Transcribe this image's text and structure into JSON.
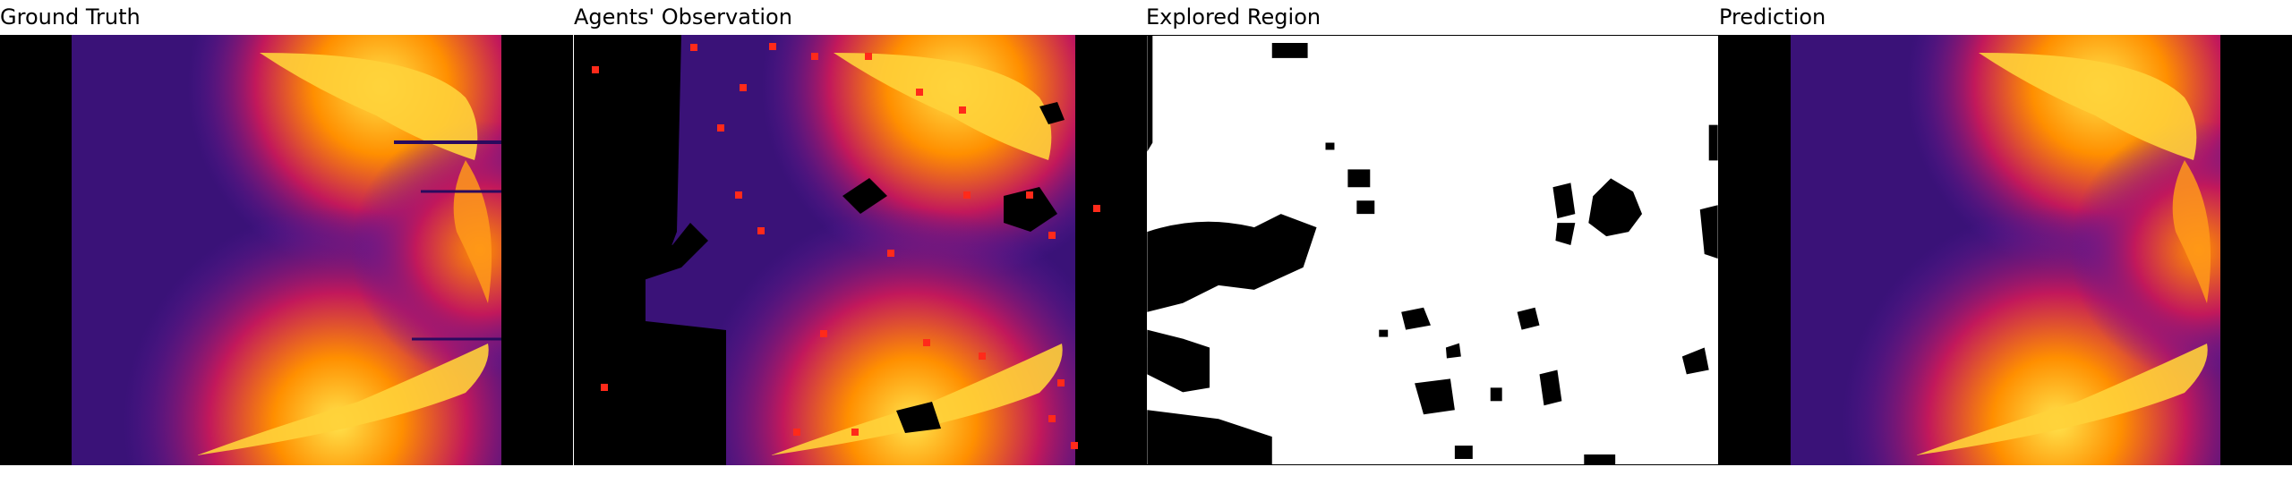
{
  "panels": [
    {
      "title": "Ground Truth"
    },
    {
      "title": "Agents' Observation"
    },
    {
      "title": "Explored Region"
    },
    {
      "title": "Prediction"
    }
  ],
  "colors": {
    "background": "#ffffff",
    "masked": "#000000",
    "explored": "#ffffff",
    "heat_low": "#2a0a5e",
    "heat_mid": "#5a1a9e",
    "heat_warm": "#c2185b",
    "heat_hot": "#ff8f00",
    "heat_max": "#ffe44d",
    "agent_marker": "#ff2a1a"
  },
  "agents": {
    "count": 25,
    "marker_color": "#ff2a1a",
    "marker_shape": "square"
  }
}
